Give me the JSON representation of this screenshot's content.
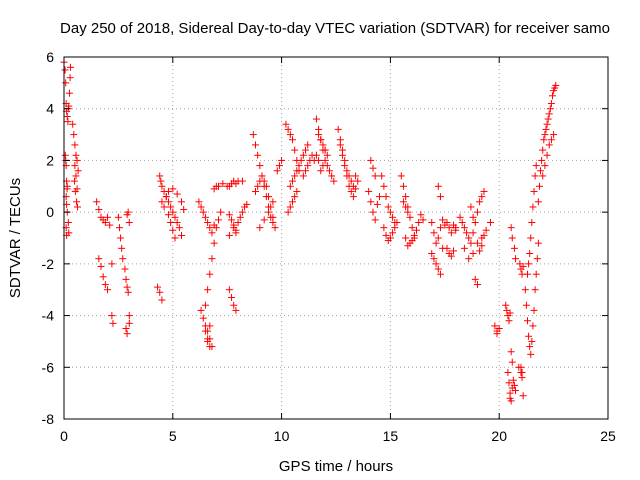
{
  "chart_data": {
    "type": "scatter",
    "title": "Day 250 of 2018, Sidereal Day-to-day VTEC variation (SDTVAR) for receiver samo",
    "xlabel": "GPS time / hours",
    "ylabel": "SDTVAR / TECUs",
    "xlim": [
      0,
      25
    ],
    "ylim": [
      -8,
      6
    ],
    "xticks": [
      "0",
      "5",
      "10",
      "15",
      "20",
      "25"
    ],
    "yticks": [
      "-8",
      "-6",
      "-4",
      "-2",
      "0",
      "2",
      "4",
      "6"
    ],
    "grid": true,
    "marker": "plus",
    "series": [
      {
        "name": "SDTVAR",
        "color": "#ff0000",
        "x": [
          0.0,
          0.05,
          0.08,
          0.1,
          0.12,
          0.15,
          0.18,
          0.2,
          0.22,
          0.25,
          0.28,
          0.3,
          0.06,
          0.08,
          0.1,
          0.12,
          0.14,
          0.1,
          0.12,
          0.15,
          0.2,
          0.22,
          0.1,
          0.12,
          0.15,
          0.4,
          0.45,
          0.5,
          0.55,
          0.6,
          0.65,
          0.48,
          0.52,
          0.58,
          0.62,
          0.5,
          0.55,
          0.6,
          1.5,
          1.6,
          1.7,
          1.8,
          1.9,
          2.0,
          2.1,
          1.6,
          1.7,
          1.8,
          1.9,
          2.0,
          2.2,
          2.2,
          2.25,
          2.5,
          2.55,
          2.6,
          2.65,
          2.7,
          2.8,
          2.85,
          2.9,
          2.95,
          2.9,
          2.95,
          3.0,
          3.0,
          3.0,
          2.85,
          2.9,
          4.3,
          4.4,
          4.5,
          4.4,
          4.45,
          4.5,
          4.6,
          4.7,
          4.8,
          4.9,
          5.0,
          5.1,
          5.2,
          5.3,
          5.4,
          4.7,
          4.8,
          5.0,
          5.2,
          5.4,
          5.5,
          4.5,
          4.6,
          4.8,
          4.9,
          5.0,
          5.1,
          6.2,
          6.3,
          6.4,
          6.5,
          6.6,
          6.7,
          6.8,
          6.9,
          6.3,
          6.4,
          6.5,
          6.6,
          6.7,
          6.8,
          6.5,
          6.6,
          6.7,
          6.8,
          6.9,
          7.0,
          7.1,
          7.2,
          6.9,
          7.0,
          7.1,
          7.3,
          7.5,
          6.5,
          6.6,
          6.7,
          6.6,
          6.7,
          7.6,
          7.7,
          7.8,
          7.9,
          8.0,
          8.2,
          7.6,
          7.7,
          7.8,
          7.9,
          8.0,
          8.1,
          8.2,
          8.3,
          8.4,
          7.6,
          7.7,
          7.8,
          7.9,
          7.8,
          7.9,
          7.6,
          8.7,
          8.8,
          8.9,
          9.0,
          9.1,
          9.2,
          9.3,
          9.4,
          9.5,
          9.6,
          9.7,
          9.8,
          9.9,
          10.0,
          8.8,
          8.9,
          9.0,
          9.1,
          9.2,
          9.3,
          9.4,
          9.5,
          9.6,
          9.0,
          9.2,
          9.4,
          9.6,
          10.2,
          10.3,
          10.4,
          10.5,
          10.6,
          10.7,
          10.8,
          10.3,
          10.4,
          10.5,
          10.6,
          10.7,
          10.4,
          10.5,
          10.6,
          10.7,
          10.8,
          10.9,
          11.0,
          11.0,
          11.1,
          11.2,
          11.3,
          11.1,
          11.2,
          11.4,
          11.5,
          11.6,
          11.7,
          11.8,
          11.9,
          12.0,
          12.1,
          12.2,
          12.3,
          12.4,
          11.7,
          11.8,
          11.9,
          12.0,
          12.1,
          11.6,
          11.7,
          11.8,
          11.9,
          12.0,
          12.6,
          12.7,
          12.8,
          12.9,
          13.0,
          13.1,
          13.2,
          13.3,
          13.4,
          12.7,
          12.8,
          12.9,
          13.0,
          13.1,
          13.2,
          13.3,
          13.4,
          13.5,
          14.0,
          14.1,
          14.2,
          14.3,
          14.4,
          14.5,
          14.1,
          14.2,
          14.3,
          14.6,
          14.7,
          14.8,
          14.9,
          15.0,
          15.1,
          15.2,
          14.7,
          14.8,
          14.9,
          15.0,
          15.1,
          15.2,
          15.3,
          15.5,
          15.6,
          15.7,
          15.8,
          15.9,
          16.0,
          16.1,
          15.7,
          15.8,
          15.9,
          16.0,
          16.1,
          16.2,
          16.3,
          16.4,
          16.5,
          15.6,
          15.7,
          15.8,
          16.9,
          17.0,
          17.1,
          17.2,
          17.3,
          17.4,
          17.5,
          16.9,
          17.0,
          17.1,
          17.2,
          17.3,
          17.4,
          17.6,
          17.7,
          17.8,
          17.9,
          18.0,
          17.6,
          17.7,
          17.8,
          17.9,
          18.0,
          17.2,
          17.3,
          18.2,
          18.3,
          18.4,
          18.5,
          18.6,
          18.7,
          18.8,
          18.9,
          19.0,
          19.1,
          19.2,
          19.3,
          18.4,
          18.6,
          18.8,
          19.0,
          19.2,
          18.9,
          19.0,
          19.1,
          19.2,
          19.3,
          19.4,
          18.7,
          18.8,
          19.6,
          19.8,
          19.9,
          20.0,
          19.9,
          20.3,
          20.35,
          20.4,
          20.45,
          20.5,
          20.55,
          20.6,
          20.4,
          20.45,
          20.5,
          20.55,
          20.6,
          20.65,
          20.7,
          20.75,
          20.5,
          20.55,
          20.6,
          20.7,
          20.75,
          20.9,
          21.0,
          21.05,
          20.95,
          21.0,
          21.05,
          21.1,
          21.0,
          21.05,
          21.1,
          21.2,
          21.25,
          21.3,
          21.35,
          21.4,
          21.45,
          21.5,
          21.55,
          21.6,
          21.65,
          21.7,
          21.75,
          21.8,
          21.3,
          21.35,
          21.4,
          21.45,
          21.5,
          21.55,
          21.6,
          21.65,
          21.7,
          21.8,
          21.85,
          21.9,
          21.95,
          22.0,
          22.05,
          22.1,
          22.15,
          22.2,
          22.25,
          22.3,
          22.35,
          22.4,
          22.45,
          22.5,
          22.55,
          22.6,
          22.0,
          22.1,
          22.2,
          22.3,
          22.4,
          22.5
        ],
        "y": [
          5.8,
          5.5,
          5.0,
          4.2,
          3.9,
          3.7,
          3.5,
          4.0,
          4.1,
          4.6,
          5.2,
          5.6,
          2.2,
          2.0,
          1.8,
          1.2,
          0.9,
          0.6,
          0.3,
          0.0,
          -0.4,
          -0.8,
          -0.6,
          -0.9,
          1.0,
          3.4,
          3.0,
          2.6,
          2.2,
          2.0,
          1.6,
          1.2,
          0.8,
          0.4,
          0.2,
          1.8,
          1.4,
          0.9,
          0.4,
          0.1,
          -0.2,
          -0.3,
          -0.4,
          -0.2,
          -0.5,
          -1.8,
          -2.1,
          -2.5,
          -2.8,
          -3.0,
          -2.0,
          -4.0,
          -4.3,
          -0.2,
          -0.6,
          -1.0,
          -1.4,
          -1.8,
          -2.2,
          -2.6,
          -2.9,
          -3.1,
          -0.1,
          0.0,
          -0.4,
          -4.0,
          -4.3,
          -4.5,
          -4.7,
          -2.9,
          -3.1,
          -3.4,
          1.4,
          1.2,
          1.0,
          0.8,
          0.6,
          0.4,
          0.2,
          0.0,
          -0.2,
          -0.4,
          -0.6,
          -0.9,
          0.6,
          0.8,
          0.9,
          0.7,
          0.4,
          0.1,
          0.4,
          0.2,
          -0.1,
          -0.4,
          -0.7,
          -1.0,
          0.4,
          0.2,
          0.0,
          -0.2,
          -0.4,
          -0.6,
          -0.8,
          -0.5,
          -3.8,
          -4.1,
          -4.4,
          -4.6,
          -4.9,
          -5.2,
          -3.6,
          -3.0,
          -2.4,
          -1.8,
          -1.2,
          -0.6,
          -0.3,
          0.0,
          0.9,
          1.0,
          1.0,
          1.1,
          1.0,
          -4.6,
          -4.9,
          -5.2,
          -5.0,
          -4.4,
          1.0,
          1.1,
          1.2,
          1.1,
          1.2,
          1.2,
          -0.1,
          -0.3,
          -0.5,
          -0.7,
          -0.4,
          -0.2,
          0.0,
          0.2,
          0.3,
          -3.0,
          -3.3,
          -3.6,
          -3.8,
          -0.6,
          -0.8,
          -0.9,
          3.0,
          2.6,
          2.2,
          1.8,
          1.4,
          1.0,
          0.6,
          0.2,
          -0.2,
          -0.4,
          -0.6,
          1.6,
          1.8,
          2.0,
          0.8,
          1.0,
          1.2,
          1.4,
          1.2,
          1.0,
          0.6,
          0.2,
          -0.2,
          -0.6,
          -0.3,
          0.0,
          0.4,
          3.4,
          3.2,
          3.0,
          2.8,
          2.4,
          2.0,
          1.6,
          0.0,
          0.2,
          0.4,
          0.6,
          0.8,
          1.0,
          1.2,
          1.4,
          1.6,
          1.8,
          2.0,
          2.2,
          1.4,
          1.6,
          1.8,
          2.0,
          2.4,
          2.6,
          2.2,
          2.0,
          3.6,
          3.2,
          2.8,
          2.4,
          2.0,
          1.8,
          1.6,
          1.4,
          1.2,
          3.0,
          2.8,
          2.6,
          2.4,
          2.2,
          2.2,
          2.0,
          1.6,
          1.8,
          2.4,
          3.2,
          2.8,
          2.4,
          2.0,
          1.6,
          1.4,
          1.2,
          1.0,
          1.4,
          2.6,
          2.2,
          1.8,
          1.4,
          1.0,
          0.8,
          0.6,
          0.9,
          1.2,
          0.8,
          0.4,
          0.0,
          -0.3,
          0.3,
          0.6,
          2.0,
          1.7,
          1.4,
          1.4,
          1.0,
          0.6,
          0.2,
          0.0,
          -0.2,
          -0.4,
          -0.6,
          -0.9,
          -1.1,
          -1.0,
          -0.8,
          -0.6,
          -0.4,
          1.4,
          1.0,
          0.6,
          0.2,
          -0.2,
          -0.6,
          -1.0,
          -1.0,
          -1.3,
          -1.2,
          -1.1,
          -0.9,
          -0.7,
          -0.4,
          -0.1,
          -0.3,
          0.4,
          0.2,
          0.0,
          -0.4,
          -0.8,
          -1.2,
          -1.0,
          -0.6,
          -0.3,
          -0.5,
          -1.6,
          -1.8,
          -2.0,
          -2.2,
          -2.4,
          -1.4,
          -1.4,
          -1.6,
          -1.7,
          -1.5,
          -0.6,
          -0.4,
          -0.6,
          -0.8,
          -0.5,
          -0.7,
          1.0,
          0.6,
          -0.2,
          -0.4,
          -0.6,
          -0.8,
          -1.0,
          -1.2,
          -0.8,
          -0.4,
          0.0,
          0.4,
          0.6,
          0.8,
          -1.4,
          -1.8,
          -1.6,
          -1.2,
          -1.0,
          -2.6,
          -2.8,
          -1.5,
          -1.3,
          -0.9,
          -0.7,
          0.2,
          -0.2,
          -0.4,
          -4.4,
          -4.6,
          -4.5,
          -4.7,
          -3.6,
          -3.8,
          -4.0,
          -4.2,
          -3.9,
          -5.4,
          -5.8,
          -6.2,
          -6.6,
          -7.0,
          -7.3,
          -6.8,
          -6.5,
          -6.7,
          -6.9,
          -7.2,
          -0.6,
          -1.0,
          -1.4,
          -1.8,
          -6.0,
          -6.2,
          -6.4,
          -2.0,
          -2.2,
          -2.4,
          -2.1,
          -6.0,
          -6.2,
          -7.1,
          -3.0,
          -3.6,
          -4.2,
          -4.8,
          -5.2,
          -5.5,
          -5.0,
          -4.4,
          -3.8,
          -3.0,
          -2.4,
          -1.8,
          -1.2,
          -2.4,
          -2.0,
          -1.6,
          -1.0,
          -0.4,
          0.2,
          0.8,
          1.4,
          1.8,
          0.4,
          1.0,
          1.6,
          2.0,
          2.4,
          2.8,
          3.0,
          3.2,
          3.4,
          3.6,
          3.8,
          4.0,
          4.2,
          4.5,
          4.7,
          4.8,
          4.9,
          1.4,
          1.8,
          2.2,
          2.6,
          2.8,
          3.0
        ]
      }
    ]
  }
}
